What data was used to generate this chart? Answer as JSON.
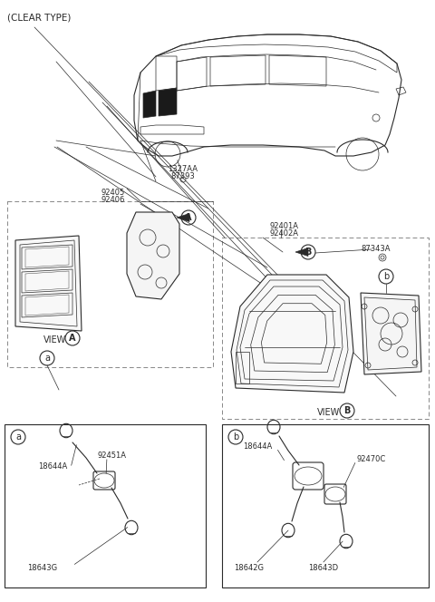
{
  "title": "(CLEAR TYPE)",
  "bg": "#ffffff",
  "lc": "#2a2a2a",
  "tc": "#2a2a2a",
  "fig_w": 4.8,
  "fig_h": 6.64,
  "dpi": 100,
  "labels": {
    "1327AA": "1327AA",
    "87393": "87393",
    "92405": "92405",
    "92406": "92406",
    "92401A": "92401A",
    "92402A": "92402A",
    "87343A": "87343A",
    "92451A": "92451A",
    "18644A": "18644A",
    "18643G": "18643G",
    "18644A_r": "18644A",
    "92470C": "92470C",
    "18642G": "18642G",
    "18643D": "18643D",
    "VIEW_A": "VIEW",
    "VIEW_B": "VIEW",
    "A": "A",
    "B": "B",
    "a": "a",
    "b": "b"
  }
}
